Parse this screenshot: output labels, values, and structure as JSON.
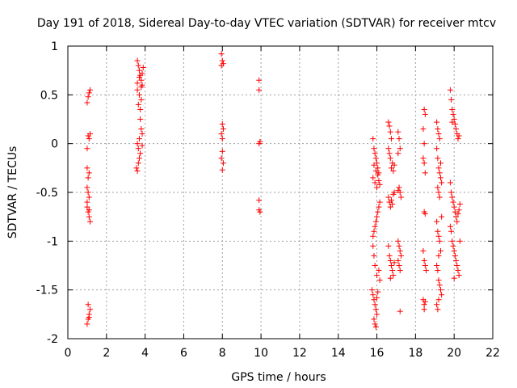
{
  "chart_data": {
    "type": "scatter",
    "title": "Day 191 of 2018, Sidereal Day-to-day VTEC variation (SDTVAR) for receiver mtcv",
    "xlabel": "GPS time / hours",
    "ylabel": "SDTVAR / TECUs",
    "xlim": [
      0,
      22
    ],
    "ylim": [
      -2,
      1
    ],
    "grid": true,
    "marker": "+",
    "xticks": [
      {
        "value": 0,
        "label": "0"
      },
      {
        "value": 2,
        "label": "2"
      },
      {
        "value": 4,
        "label": "4"
      },
      {
        "value": 6,
        "label": "6"
      },
      {
        "value": 8,
        "label": "8"
      },
      {
        "value": 10,
        "label": "10"
      },
      {
        "value": 12,
        "label": "12"
      },
      {
        "value": 14,
        "label": "14"
      },
      {
        "value": 16,
        "label": "16"
      },
      {
        "value": 18,
        "label": "18"
      },
      {
        "value": 20,
        "label": "20"
      },
      {
        "value": 22,
        "label": "22"
      }
    ],
    "yticks": [
      {
        "value": 1,
        "label": "1"
      },
      {
        "value": 0.5,
        "label": "0.5"
      },
      {
        "value": 0,
        "label": "0"
      },
      {
        "value": -0.5,
        "label": "-0.5"
      },
      {
        "value": -1,
        "label": "-1"
      },
      {
        "value": -1.5,
        "label": "-1.5"
      },
      {
        "value": -2,
        "label": "-2"
      }
    ],
    "series": [
      {
        "name": "SDTVAR",
        "color": "#ff0000",
        "points": [
          {
            "x": 1.0,
            "y": 0.42
          },
          {
            "x": 1.05,
            "y": 0.48
          },
          {
            "x": 1.1,
            "y": 0.52
          },
          {
            "x": 1.15,
            "y": 0.55
          },
          {
            "x": 1.05,
            "y": 0.08
          },
          {
            "x": 1.1,
            "y": 0.05
          },
          {
            "x": 1.0,
            "y": -0.05
          },
          {
            "x": 1.15,
            "y": 0.1
          },
          {
            "x": 1.0,
            "y": -0.25
          },
          {
            "x": 1.05,
            "y": -0.35
          },
          {
            "x": 1.1,
            "y": -0.3
          },
          {
            "x": 1.0,
            "y": -0.45
          },
          {
            "x": 1.05,
            "y": -0.5
          },
          {
            "x": 1.1,
            "y": -0.55
          },
          {
            "x": 1.0,
            "y": -0.65
          },
          {
            "x": 1.05,
            "y": -0.7
          },
          {
            "x": 1.1,
            "y": -0.75
          },
          {
            "x": 1.15,
            "y": -0.8
          },
          {
            "x": 1.0,
            "y": -0.6
          },
          {
            "x": 1.1,
            "y": -0.68
          },
          {
            "x": 1.0,
            "y": -1.85
          },
          {
            "x": 1.05,
            "y": -1.8
          },
          {
            "x": 1.1,
            "y": -1.75
          },
          {
            "x": 1.15,
            "y": -1.7
          },
          {
            "x": 1.05,
            "y": -1.65
          },
          {
            "x": 1.1,
            "y": -1.78
          },
          {
            "x": 3.6,
            "y": 0.85
          },
          {
            "x": 3.65,
            "y": 0.8
          },
          {
            "x": 3.7,
            "y": 0.75
          },
          {
            "x": 3.75,
            "y": 0.7
          },
          {
            "x": 3.8,
            "y": 0.65
          },
          {
            "x": 3.85,
            "y": 0.6
          },
          {
            "x": 3.6,
            "y": 0.55
          },
          {
            "x": 3.7,
            "y": 0.5
          },
          {
            "x": 3.8,
            "y": 0.45
          },
          {
            "x": 3.65,
            "y": 0.4
          },
          {
            "x": 3.75,
            "y": 0.35
          },
          {
            "x": 3.85,
            "y": 0.72
          },
          {
            "x": 3.6,
            "y": 0.62
          },
          {
            "x": 3.7,
            "y": 0.68
          },
          {
            "x": 3.8,
            "y": 0.58
          },
          {
            "x": 3.9,
            "y": 0.78
          },
          {
            "x": 3.75,
            "y": 0.25
          },
          {
            "x": 3.8,
            "y": 0.15
          },
          {
            "x": 3.85,
            "y": 0.1
          },
          {
            "x": 3.7,
            "y": 0.05
          },
          {
            "x": 3.6,
            "y": 0.0
          },
          {
            "x": 3.65,
            "y": -0.05
          },
          {
            "x": 3.75,
            "y": -0.1
          },
          {
            "x": 3.85,
            "y": -0.02
          },
          {
            "x": 3.55,
            "y": -0.25
          },
          {
            "x": 3.6,
            "y": -0.28
          },
          {
            "x": 3.65,
            "y": -0.2
          },
          {
            "x": 3.7,
            "y": -0.15
          },
          {
            "x": 7.95,
            "y": 0.92
          },
          {
            "x": 8.0,
            "y": 0.85
          },
          {
            "x": 8.05,
            "y": 0.82
          },
          {
            "x": 7.95,
            "y": 0.8
          },
          {
            "x": 8.0,
            "y": 0.2
          },
          {
            "x": 8.05,
            "y": 0.15
          },
          {
            "x": 7.95,
            "y": 0.1
          },
          {
            "x": 8.0,
            "y": 0.05
          },
          {
            "x": 8.0,
            "y": -0.08
          },
          {
            "x": 7.95,
            "y": -0.15
          },
          {
            "x": 8.05,
            "y": -0.2
          },
          {
            "x": 8.0,
            "y": -0.27
          },
          {
            "x": 9.9,
            "y": 0.65
          },
          {
            "x": 9.9,
            "y": 0.55
          },
          {
            "x": 9.95,
            "y": 0.02
          },
          {
            "x": 9.9,
            "y": 0.0
          },
          {
            "x": 9.9,
            "y": -0.58
          },
          {
            "x": 9.9,
            "y": -0.68
          },
          {
            "x": 9.95,
            "y": -0.7
          },
          {
            "x": 15.8,
            "y": 0.05
          },
          {
            "x": 15.85,
            "y": -0.05
          },
          {
            "x": 15.9,
            "y": -0.1
          },
          {
            "x": 15.95,
            "y": -0.15
          },
          {
            "x": 16.0,
            "y": -0.2
          },
          {
            "x": 16.05,
            "y": -0.25
          },
          {
            "x": 16.1,
            "y": -0.3
          },
          {
            "x": 15.8,
            "y": -0.35
          },
          {
            "x": 15.9,
            "y": -0.4
          },
          {
            "x": 16.0,
            "y": -0.45
          },
          {
            "x": 16.1,
            "y": -0.38
          },
          {
            "x": 15.85,
            "y": -0.22
          },
          {
            "x": 15.95,
            "y": -0.28
          },
          {
            "x": 16.05,
            "y": -0.32
          },
          {
            "x": 16.15,
            "y": -0.42
          },
          {
            "x": 15.8,
            "y": -0.95
          },
          {
            "x": 15.85,
            "y": -0.9
          },
          {
            "x": 15.9,
            "y": -0.85
          },
          {
            "x": 15.95,
            "y": -0.8
          },
          {
            "x": 16.0,
            "y": -0.75
          },
          {
            "x": 16.05,
            "y": -0.7
          },
          {
            "x": 16.1,
            "y": -0.65
          },
          {
            "x": 16.15,
            "y": -0.6
          },
          {
            "x": 15.8,
            "y": -1.05
          },
          {
            "x": 15.85,
            "y": -1.15
          },
          {
            "x": 15.9,
            "y": -1.25
          },
          {
            "x": 16.0,
            "y": -1.35
          },
          {
            "x": 16.1,
            "y": -1.3
          },
          {
            "x": 16.15,
            "y": -1.4
          },
          {
            "x": 15.75,
            "y": -1.5
          },
          {
            "x": 15.8,
            "y": -1.55
          },
          {
            "x": 15.85,
            "y": -1.6
          },
          {
            "x": 15.9,
            "y": -1.65
          },
          {
            "x": 15.95,
            "y": -1.7
          },
          {
            "x": 16.0,
            "y": -1.58
          },
          {
            "x": 16.05,
            "y": -1.52
          },
          {
            "x": 15.85,
            "y": -1.8
          },
          {
            "x": 15.9,
            "y": -1.85
          },
          {
            "x": 15.95,
            "y": -1.88
          },
          {
            "x": 16.0,
            "y": -1.75
          },
          {
            "x": 16.6,
            "y": 0.22
          },
          {
            "x": 16.65,
            "y": 0.18
          },
          {
            "x": 16.7,
            "y": 0.12
          },
          {
            "x": 16.75,
            "y": 0.05
          },
          {
            "x": 16.6,
            "y": -0.05
          },
          {
            "x": 16.7,
            "y": -0.15
          },
          {
            "x": 16.8,
            "y": -0.2
          },
          {
            "x": 16.85,
            "y": -0.28
          },
          {
            "x": 16.9,
            "y": -0.22
          },
          {
            "x": 16.75,
            "y": -0.25
          },
          {
            "x": 16.65,
            "y": -0.1
          },
          {
            "x": 16.6,
            "y": -0.55
          },
          {
            "x": 16.65,
            "y": -0.6
          },
          {
            "x": 16.7,
            "y": -0.65
          },
          {
            "x": 16.75,
            "y": -0.58
          },
          {
            "x": 16.8,
            "y": -0.62
          },
          {
            "x": 16.85,
            "y": -0.52
          },
          {
            "x": 16.9,
            "y": -0.5
          },
          {
            "x": 16.6,
            "y": -1.05
          },
          {
            "x": 16.65,
            "y": -1.15
          },
          {
            "x": 16.7,
            "y": -1.2
          },
          {
            "x": 16.75,
            "y": -1.25
          },
          {
            "x": 16.8,
            "y": -1.3
          },
          {
            "x": 16.85,
            "y": -1.35
          },
          {
            "x": 16.7,
            "y": -1.38
          },
          {
            "x": 16.9,
            "y": -1.22
          },
          {
            "x": 17.1,
            "y": 0.12
          },
          {
            "x": 17.15,
            "y": 0.05
          },
          {
            "x": 17.2,
            "y": -0.05
          },
          {
            "x": 17.1,
            "y": -0.1
          },
          {
            "x": 17.15,
            "y": -0.45
          },
          {
            "x": 17.2,
            "y": -0.5
          },
          {
            "x": 17.25,
            "y": -0.55
          },
          {
            "x": 17.1,
            "y": -0.48
          },
          {
            "x": 17.1,
            "y": -1.0
          },
          {
            "x": 17.15,
            "y": -1.05
          },
          {
            "x": 17.2,
            "y": -1.1
          },
          {
            "x": 17.25,
            "y": -1.15
          },
          {
            "x": 17.1,
            "y": -1.2
          },
          {
            "x": 17.15,
            "y": -1.25
          },
          {
            "x": 17.2,
            "y": -1.3
          },
          {
            "x": 17.2,
            "y": -1.72
          },
          {
            "x": 18.45,
            "y": 0.35
          },
          {
            "x": 18.5,
            "y": 0.3
          },
          {
            "x": 18.4,
            "y": 0.15
          },
          {
            "x": 18.45,
            "y": 0.0
          },
          {
            "x": 18.4,
            "y": -0.15
          },
          {
            "x": 18.45,
            "y": -0.2
          },
          {
            "x": 18.5,
            "y": -0.3
          },
          {
            "x": 18.45,
            "y": -0.7
          },
          {
            "x": 18.5,
            "y": -0.72
          },
          {
            "x": 18.4,
            "y": -1.1
          },
          {
            "x": 18.45,
            "y": -1.2
          },
          {
            "x": 18.5,
            "y": -1.25
          },
          {
            "x": 18.55,
            "y": -1.3
          },
          {
            "x": 18.4,
            "y": -1.6
          },
          {
            "x": 18.45,
            "y": -1.65
          },
          {
            "x": 18.5,
            "y": -1.62
          },
          {
            "x": 18.45,
            "y": -1.7
          },
          {
            "x": 19.1,
            "y": 0.22
          },
          {
            "x": 19.15,
            "y": 0.15
          },
          {
            "x": 19.2,
            "y": 0.1
          },
          {
            "x": 19.25,
            "y": 0.05
          },
          {
            "x": 19.1,
            "y": -0.05
          },
          {
            "x": 19.15,
            "y": -0.15
          },
          {
            "x": 19.2,
            "y": -0.25
          },
          {
            "x": 19.25,
            "y": -0.3
          },
          {
            "x": 19.3,
            "y": -0.35
          },
          {
            "x": 19.35,
            "y": -0.4
          },
          {
            "x": 19.15,
            "y": -0.45
          },
          {
            "x": 19.2,
            "y": -0.5
          },
          {
            "x": 19.25,
            "y": -0.55
          },
          {
            "x": 19.3,
            "y": -0.2
          },
          {
            "x": 19.1,
            "y": -0.8
          },
          {
            "x": 19.15,
            "y": -0.9
          },
          {
            "x": 19.2,
            "y": -0.95
          },
          {
            "x": 19.25,
            "y": -1.0
          },
          {
            "x": 19.3,
            "y": -1.1
          },
          {
            "x": 19.35,
            "y": -0.75
          },
          {
            "x": 19.2,
            "y": -1.15
          },
          {
            "x": 19.1,
            "y": -1.25
          },
          {
            "x": 19.15,
            "y": -1.3
          },
          {
            "x": 19.2,
            "y": -1.4
          },
          {
            "x": 19.25,
            "y": -1.45
          },
          {
            "x": 19.3,
            "y": -1.5
          },
          {
            "x": 19.35,
            "y": -1.55
          },
          {
            "x": 19.2,
            "y": -1.6
          },
          {
            "x": 19.1,
            "y": -1.65
          },
          {
            "x": 19.15,
            "y": -1.7
          },
          {
            "x": 19.8,
            "y": 0.55
          },
          {
            "x": 19.85,
            "y": 0.45
          },
          {
            "x": 19.9,
            "y": 0.35
          },
          {
            "x": 19.95,
            "y": 0.3
          },
          {
            "x": 20.0,
            "y": 0.25
          },
          {
            "x": 20.05,
            "y": 0.2
          },
          {
            "x": 20.1,
            "y": 0.15
          },
          {
            "x": 20.15,
            "y": 0.1
          },
          {
            "x": 20.2,
            "y": 0.05
          },
          {
            "x": 20.25,
            "y": 0.08
          },
          {
            "x": 19.9,
            "y": 0.22
          },
          {
            "x": 19.8,
            "y": -0.4
          },
          {
            "x": 19.85,
            "y": -0.5
          },
          {
            "x": 19.9,
            "y": -0.55
          },
          {
            "x": 19.95,
            "y": -0.6
          },
          {
            "x": 20.0,
            "y": -0.65
          },
          {
            "x": 20.05,
            "y": -0.7
          },
          {
            "x": 20.1,
            "y": -0.75
          },
          {
            "x": 20.15,
            "y": -0.8
          },
          {
            "x": 20.2,
            "y": -0.72
          },
          {
            "x": 20.25,
            "y": -0.68
          },
          {
            "x": 20.3,
            "y": -0.62
          },
          {
            "x": 19.8,
            "y": -0.85
          },
          {
            "x": 19.85,
            "y": -0.9
          },
          {
            "x": 19.9,
            "y": -1.0
          },
          {
            "x": 19.95,
            "y": -1.05
          },
          {
            "x": 20.0,
            "y": -1.1
          },
          {
            "x": 20.05,
            "y": -1.15
          },
          {
            "x": 20.1,
            "y": -1.2
          },
          {
            "x": 20.15,
            "y": -1.25
          },
          {
            "x": 20.2,
            "y": -1.3
          },
          {
            "x": 20.25,
            "y": -1.35
          },
          {
            "x": 20.0,
            "y": -1.38
          },
          {
            "x": 20.3,
            "y": -1.0
          }
        ]
      }
    ]
  }
}
